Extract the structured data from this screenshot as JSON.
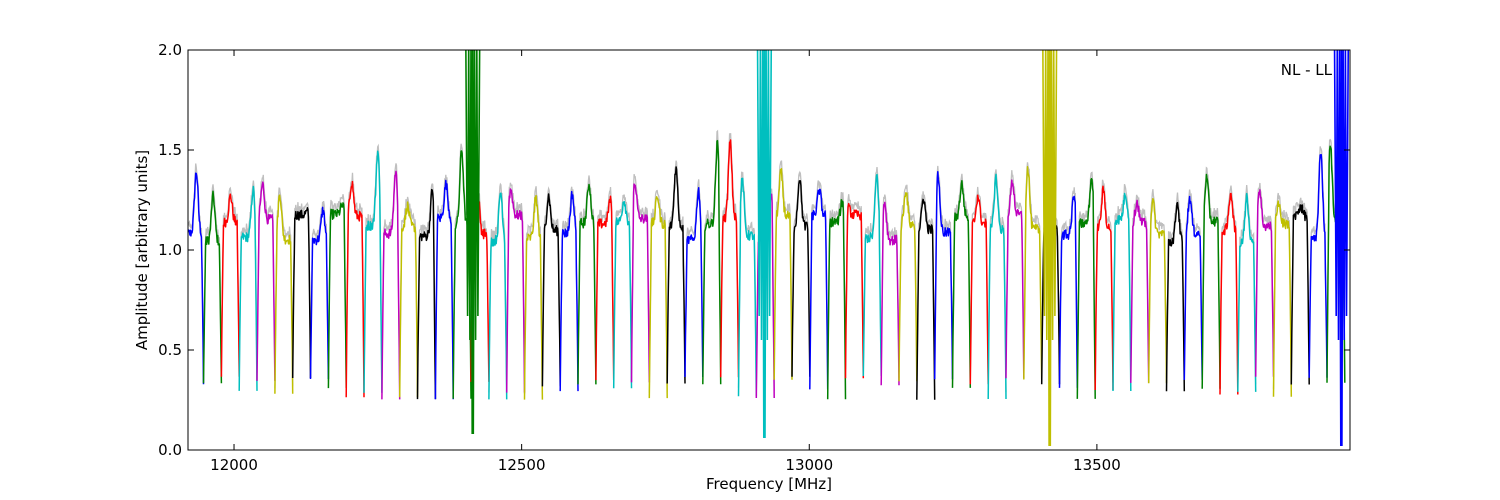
{
  "chart_data": {
    "type": "line",
    "annotation": "NL - LL",
    "xlabel": "Frequency [MHz]",
    "ylabel": "Amplitude [arbitrary units]",
    "xlim": [
      11920,
      13940
    ],
    "ylim": [
      0.0,
      2.0
    ],
    "xticks": [
      12000,
      12500,
      13000,
      13500
    ],
    "yticks": [
      0.0,
      0.5,
      1.0,
      1.5,
      2.0
    ],
    "xtick_labels": [
      "12000",
      "12500",
      "13000",
      "13500"
    ],
    "ytick_labels": [
      "0.0",
      "0.5",
      "1.0",
      "1.5",
      "2.0"
    ],
    "grid": false,
    "legend": false,
    "background_trace_color": "#bfbfbf",
    "series_colors": [
      "#0000ff",
      "#008000",
      "#ff0000",
      "#00bfbf",
      "#bf00bf",
      "#bfbf00",
      "#000000"
    ],
    "channel_width_mhz": 31,
    "channel_count": 65,
    "channel_peaks": [
      1.39,
      1.27,
      1.27,
      1.3,
      1.33,
      1.28,
      1.19,
      1.2,
      1.22,
      1.34,
      1.49,
      1.39,
      1.22,
      1.3,
      1.33,
      1.5,
      1.3,
      1.29,
      1.3,
      1.26,
      1.27,
      1.28,
      1.33,
      1.25,
      1.25,
      1.34,
      1.27,
      1.41,
      1.3,
      1.53,
      1.54,
      1.35,
      1.27,
      1.39,
      1.36,
      1.3,
      1.24,
      1.21,
      1.37,
      1.24,
      1.3,
      1.26,
      1.37,
      1.33,
      1.27,
      1.36,
      1.34,
      1.41,
      1.27,
      1.28,
      1.36,
      1.3,
      1.28,
      1.24,
      1.24,
      1.24,
      1.26,
      1.36,
      1.29,
      1.26,
      1.3,
      1.24,
      1.22,
      1.5,
      1.54
    ],
    "rfi_spikes": [
      {
        "x": 12415,
        "min": 0.08,
        "max": 2.0,
        "color": "#008000"
      },
      {
        "x": 12922,
        "min": 0.06,
        "max": 2.0,
        "color": "#00bfbf"
      },
      {
        "x": 13418,
        "min": 0.02,
        "max": 2.0,
        "color": "#bfbf00"
      },
      {
        "x": 13925,
        "min": 0.02,
        "max": 2.0,
        "color": "#0000ff"
      }
    ]
  }
}
